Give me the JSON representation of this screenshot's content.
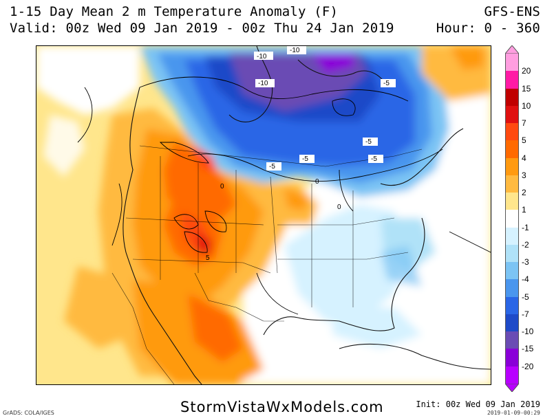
{
  "header": {
    "title": "1-15 Day Mean 2 m Temperature Anomaly (F)",
    "valid": "Valid: 00z Wed 09 Jan 2019 - 00z Thu 24 Jan 2019",
    "model": "GFS-ENS",
    "hour": "Hour: 0 - 360"
  },
  "legend": {
    "ticks": [
      "20",
      "15",
      "10",
      "7",
      "5",
      "4",
      "3",
      "2",
      "1",
      "-1",
      "-2",
      "-3",
      "-4",
      "-5",
      "-7",
      "-10",
      "-15",
      "-20"
    ],
    "colors": [
      "#ff9ee0",
      "#ff1aa5",
      "#c00000",
      "#e01010",
      "#ff4a10",
      "#ff6a00",
      "#ff9a10",
      "#ffba40",
      "#ffe68c",
      "#ffffff",
      "#d6f2ff",
      "#b0e2f8",
      "#7cc4f4",
      "#4a96ee",
      "#2a66e6",
      "#1e4ac8",
      "#6a4cb4",
      "#8a00d8",
      "#b800ff"
    ]
  },
  "contour_labels": [
    "-10",
    "-10",
    "-10",
    "-5",
    "-5",
    "-5",
    "-5",
    "-5",
    "0",
    "0",
    "0",
    "5"
  ],
  "footer": {
    "site": "StormVistaWxModels.com",
    "init": "Init: 00z Wed 09 Jan 2019",
    "stamp": "2019-01-09-00:29",
    "credit": "GrADS: COLA/IGES"
  }
}
